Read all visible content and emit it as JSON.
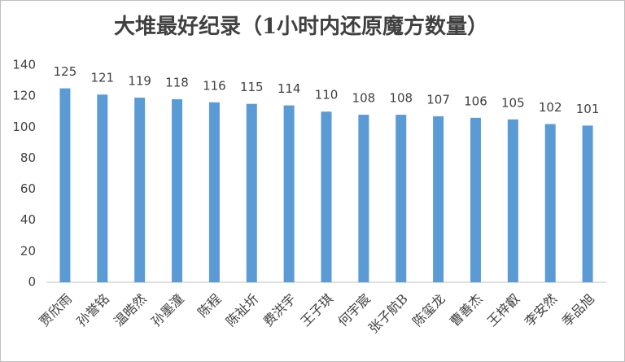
{
  "chart_data": {
    "type": "bar",
    "title": "大堆最好纪录（1小时内还原魔方数量）",
    "categories": [
      "贾欣雨",
      "孙誉铭",
      "温晧然",
      "孙墨潼",
      "陈程",
      "陈祉圻",
      "费洪宇",
      "王子琪",
      "何宇宸",
      "张子航B",
      "陈玺龙",
      "曹善杰",
      "王梓叡",
      "李安然",
      "季品旭"
    ],
    "values": [
      125,
      121,
      119,
      118,
      116,
      115,
      114,
      110,
      108,
      108,
      107,
      106,
      105,
      102,
      101
    ],
    "color": "#5b9bd5",
    "ylim": [
      0,
      140
    ],
    "yticks": [
      0,
      20,
      40,
      60,
      80,
      100,
      120,
      140
    ],
    "grid": false
  }
}
